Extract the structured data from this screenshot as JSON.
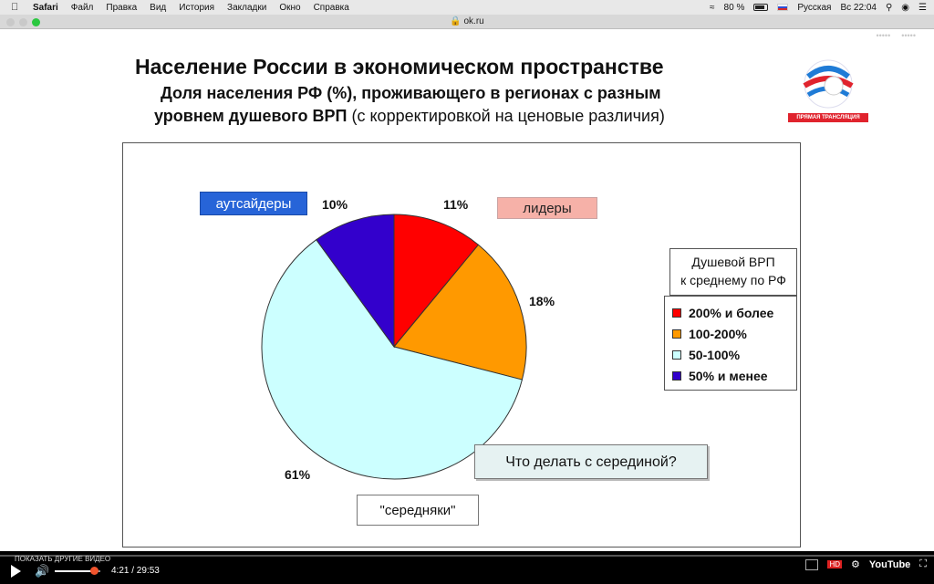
{
  "menubar": {
    "app": "Safari",
    "items": [
      "Файл",
      "Правка",
      "Вид",
      "История",
      "Закладки",
      "Окно",
      "Справка"
    ],
    "battery": "80 %",
    "input_lang": "Русская",
    "clock": "Вс 22:04"
  },
  "browser": {
    "url": "ok.ru"
  },
  "slide": {
    "title": "Население России в экономическом пространстве",
    "subtitle1": "Доля населения РФ (%), проживающего в регионах с разным",
    "subtitle2_bold": "уровнем душевого ВРП",
    "subtitle2_rest": " (с корректировкой на ценовые различия)",
    "live_badge": "ПРЯМАЯ ТРАНСЛЯЦИЯ",
    "label_outsiders": "аутсайдеры",
    "label_leaders": "лидеры",
    "label_middle": "\"середняки\"",
    "question": "Что делать с серединой?",
    "legend_title_line1": "Душевой ВРП",
    "legend_title_line2": "к среднему по РФ",
    "colors": {
      "c1": "#ff0000",
      "c2": "#ff9900",
      "c3": "#ccffff",
      "c4": "#3300cc"
    }
  },
  "chart_data": {
    "type": "pie",
    "slices": [
      {
        "name": "200% и более",
        "value": 11,
        "label": "11%"
      },
      {
        "name": "100-200%",
        "value": 18,
        "label": "18%"
      },
      {
        "name": "50-100%",
        "value": 61,
        "label": "61%"
      },
      {
        "name": "50% и менее",
        "value": 10,
        "label": "10%"
      }
    ],
    "legend_placement": "right"
  },
  "player": {
    "show_more": "ПОКАЗАТЬ ДРУГИЕ ВИДЕО",
    "time": "4:21 / 29:53",
    "volume": 0.85,
    "hd": "HD",
    "brand": "YouTube"
  }
}
